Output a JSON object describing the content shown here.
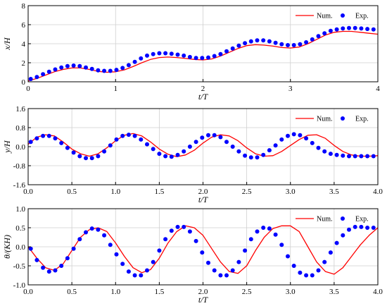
{
  "chart_data": [
    {
      "type": "line",
      "xlabel": "t/T",
      "ylabel": "x/H",
      "xlim": [
        0,
        4
      ],
      "ylim": [
        0,
        8
      ],
      "xticks": [
        "0",
        "1",
        "2",
        "3",
        "4"
      ],
      "yticks": [
        "0",
        "2",
        "4",
        "6",
        "8"
      ],
      "grid": true,
      "legend": "top-right",
      "series": [
        {
          "name": "Num.",
          "style": "line",
          "color": "#ff0000",
          "x": [
            0,
            0.1,
            0.2,
            0.3,
            0.4,
            0.5,
            0.6,
            0.7,
            0.8,
            0.9,
            1.0,
            1.1,
            1.2,
            1.3,
            1.4,
            1.5,
            1.6,
            1.7,
            1.8,
            1.9,
            2.0,
            2.1,
            2.2,
            2.3,
            2.4,
            2.5,
            2.6,
            2.7,
            2.8,
            2.9,
            3.0,
            3.1,
            3.2,
            3.3,
            3.4,
            3.5,
            3.6,
            3.7,
            3.8,
            3.9,
            4.0
          ],
          "y": [
            0.1,
            0.35,
            0.7,
            1.05,
            1.3,
            1.45,
            1.45,
            1.3,
            1.1,
            1.0,
            1.05,
            1.25,
            1.6,
            2.0,
            2.35,
            2.55,
            2.6,
            2.55,
            2.45,
            2.35,
            2.3,
            2.4,
            2.7,
            3.1,
            3.5,
            3.8,
            3.9,
            3.85,
            3.75,
            3.6,
            3.55,
            3.65,
            4.0,
            4.45,
            4.9,
            5.2,
            5.3,
            5.3,
            5.2,
            5.1,
            5.0
          ]
        },
        {
          "name": "Exp.",
          "style": "markers",
          "color": "#0000ff",
          "x": [
            0.03,
            0.1,
            0.17,
            0.24,
            0.31,
            0.38,
            0.45,
            0.52,
            0.59,
            0.66,
            0.73,
            0.8,
            0.87,
            0.94,
            1.01,
            1.08,
            1.15,
            1.22,
            1.29,
            1.36,
            1.43,
            1.5,
            1.57,
            1.64,
            1.71,
            1.78,
            1.85,
            1.92,
            1.99,
            2.06,
            2.13,
            2.2,
            2.27,
            2.34,
            2.41,
            2.48,
            2.55,
            2.62,
            2.69,
            2.76,
            2.83,
            2.9,
            2.97,
            3.04,
            3.11,
            3.18,
            3.25,
            3.32,
            3.39,
            3.46,
            3.53,
            3.6,
            3.67,
            3.74,
            3.81,
            3.88,
            3.95
          ],
          "y": [
            0.3,
            0.5,
            0.8,
            1.05,
            1.3,
            1.5,
            1.65,
            1.7,
            1.65,
            1.5,
            1.35,
            1.2,
            1.15,
            1.15,
            1.25,
            1.45,
            1.75,
            2.1,
            2.45,
            2.75,
            2.9,
            3.0,
            3.0,
            2.95,
            2.85,
            2.75,
            2.6,
            2.5,
            2.5,
            2.55,
            2.7,
            2.9,
            3.2,
            3.5,
            3.8,
            4.05,
            4.25,
            4.35,
            4.35,
            4.25,
            4.1,
            3.95,
            3.85,
            3.85,
            3.95,
            4.15,
            4.45,
            4.8,
            5.1,
            5.35,
            5.5,
            5.6,
            5.65,
            5.65,
            5.6,
            5.55,
            5.5
          ]
        }
      ]
    },
    {
      "type": "line",
      "xlabel": "t/T",
      "ylabel": "y/H",
      "xlim": [
        0,
        4
      ],
      "ylim": [
        -1.6,
        1.6
      ],
      "xticks": [
        "0.0",
        "0.5",
        "1.0",
        "1.5",
        "2.0",
        "2.5",
        "3.0",
        "3.5",
        "4.0"
      ],
      "yticks": [
        "-1.6",
        "-0.8",
        "0.0",
        "0.8",
        "1.6"
      ],
      "grid": true,
      "legend": "top-right",
      "series": [
        {
          "name": "Num.",
          "style": "line",
          "color": "#ff0000",
          "x": [
            0,
            0.1,
            0.2,
            0.3,
            0.4,
            0.5,
            0.6,
            0.7,
            0.8,
            0.9,
            1.0,
            1.1,
            1.2,
            1.3,
            1.4,
            1.5,
            1.6,
            1.7,
            1.8,
            1.9,
            2.0,
            2.1,
            2.2,
            2.3,
            2.4,
            2.5,
            2.6,
            2.7,
            2.8,
            2.9,
            3.0,
            3.1,
            3.2,
            3.3,
            3.4,
            3.5,
            3.6,
            3.7,
            3.8,
            3.9,
            4.0
          ],
          "y": [
            0.1,
            0.4,
            0.5,
            0.45,
            0.2,
            -0.1,
            -0.3,
            -0.4,
            -0.3,
            -0.05,
            0.25,
            0.48,
            0.55,
            0.45,
            0.2,
            -0.1,
            -0.32,
            -0.42,
            -0.35,
            -0.15,
            0.15,
            0.4,
            0.5,
            0.45,
            0.25,
            -0.05,
            -0.3,
            -0.4,
            -0.38,
            -0.2,
            0.05,
            0.3,
            0.48,
            0.5,
            0.35,
            0.05,
            -0.2,
            -0.35,
            -0.4,
            -0.4,
            -0.38
          ]
        },
        {
          "name": "Exp.",
          "style": "markers",
          "color": "#0000ff",
          "x": [
            0.03,
            0.1,
            0.17,
            0.24,
            0.31,
            0.38,
            0.45,
            0.52,
            0.59,
            0.66,
            0.73,
            0.8,
            0.87,
            0.94,
            1.01,
            1.08,
            1.15,
            1.22,
            1.29,
            1.36,
            1.43,
            1.5,
            1.57,
            1.64,
            1.71,
            1.78,
            1.85,
            1.92,
            1.99,
            2.06,
            2.13,
            2.2,
            2.27,
            2.34,
            2.41,
            2.48,
            2.55,
            2.62,
            2.69,
            2.76,
            2.83,
            2.9,
            2.97,
            3.04,
            3.11,
            3.18,
            3.25,
            3.32,
            3.39,
            3.46,
            3.53,
            3.6,
            3.67,
            3.74,
            3.81,
            3.88,
            3.95
          ],
          "y": [
            0.2,
            0.35,
            0.45,
            0.45,
            0.35,
            0.15,
            -0.05,
            -0.25,
            -0.4,
            -0.48,
            -0.48,
            -0.4,
            -0.2,
            0.05,
            0.3,
            0.45,
            0.5,
            0.45,
            0.3,
            0.1,
            -0.1,
            -0.3,
            -0.4,
            -0.42,
            -0.35,
            -0.2,
            0.0,
            0.2,
            0.38,
            0.48,
            0.48,
            0.4,
            0.2,
            0.0,
            -0.2,
            -0.38,
            -0.45,
            -0.45,
            -0.35,
            -0.15,
            0.05,
            0.3,
            0.45,
            0.52,
            0.48,
            0.35,
            0.15,
            -0.05,
            -0.2,
            -0.3,
            -0.35,
            -0.38,
            -0.4,
            -0.4,
            -0.4,
            -0.4,
            -0.4
          ]
        }
      ]
    },
    {
      "type": "line",
      "xlabel": "t/T",
      "ylabel": "θ/(KH)",
      "xlim": [
        0,
        4
      ],
      "ylim": [
        -1.0,
        1.0
      ],
      "xticks": [
        "0.0",
        "0.5",
        "1.0",
        "1.5",
        "2.0",
        "2.5",
        "3.0",
        "3.5",
        "4.0"
      ],
      "yticks": [
        "-1.0",
        "-0.5",
        "0.0",
        "0.5",
        "1.0"
      ],
      "grid": true,
      "legend": "top-right",
      "series": [
        {
          "name": "Num.",
          "style": "line",
          "color": "#ff0000",
          "x": [
            0,
            0.1,
            0.2,
            0.3,
            0.4,
            0.5,
            0.6,
            0.7,
            0.8,
            0.9,
            1.0,
            1.1,
            1.2,
            1.3,
            1.4,
            1.5,
            1.6,
            1.7,
            1.8,
            1.9,
            2.0,
            2.1,
            2.2,
            2.3,
            2.4,
            2.5,
            2.6,
            2.7,
            2.8,
            2.9,
            3.0,
            3.1,
            3.2,
            3.3,
            3.4,
            3.5,
            3.6,
            3.7,
            3.8,
            3.9,
            4.0
          ],
          "y": [
            0.0,
            -0.3,
            -0.55,
            -0.62,
            -0.45,
            -0.1,
            0.25,
            0.45,
            0.5,
            0.4,
            0.1,
            -0.25,
            -0.55,
            -0.68,
            -0.6,
            -0.3,
            0.1,
            0.4,
            0.55,
            0.5,
            0.3,
            -0.05,
            -0.4,
            -0.65,
            -0.7,
            -0.5,
            -0.1,
            0.25,
            0.48,
            0.55,
            0.55,
            0.4,
            0.0,
            -0.4,
            -0.65,
            -0.72,
            -0.55,
            -0.25,
            0.05,
            0.3,
            0.5
          ]
        },
        {
          "name": "Exp.",
          "style": "markers",
          "color": "#0000ff",
          "x": [
            0.03,
            0.1,
            0.17,
            0.24,
            0.31,
            0.38,
            0.45,
            0.52,
            0.59,
            0.66,
            0.73,
            0.8,
            0.87,
            0.94,
            1.01,
            1.08,
            1.15,
            1.22,
            1.29,
            1.36,
            1.43,
            1.5,
            1.57,
            1.64,
            1.71,
            1.78,
            1.85,
            1.92,
            1.99,
            2.06,
            2.13,
            2.2,
            2.27,
            2.34,
            2.41,
            2.48,
            2.55,
            2.62,
            2.69,
            2.76,
            2.83,
            2.9,
            2.97,
            3.04,
            3.11,
            3.18,
            3.25,
            3.32,
            3.39,
            3.46,
            3.53,
            3.6,
            3.67,
            3.74,
            3.81,
            3.88,
            3.95
          ],
          "y": [
            -0.05,
            -0.35,
            -0.55,
            -0.65,
            -0.62,
            -0.5,
            -0.3,
            -0.05,
            0.2,
            0.38,
            0.48,
            0.45,
            0.3,
            0.05,
            -0.2,
            -0.45,
            -0.65,
            -0.75,
            -0.75,
            -0.62,
            -0.4,
            -0.1,
            0.2,
            0.42,
            0.52,
            0.52,
            0.4,
            0.15,
            -0.15,
            -0.42,
            -0.62,
            -0.75,
            -0.75,
            -0.62,
            -0.4,
            -0.1,
            0.2,
            0.4,
            0.5,
            0.48,
            0.32,
            0.05,
            -0.25,
            -0.5,
            -0.68,
            -0.75,
            -0.75,
            -0.62,
            -0.4,
            -0.15,
            0.1,
            0.3,
            0.45,
            0.52,
            0.52,
            0.5,
            0.5
          ]
        }
      ]
    }
  ]
}
